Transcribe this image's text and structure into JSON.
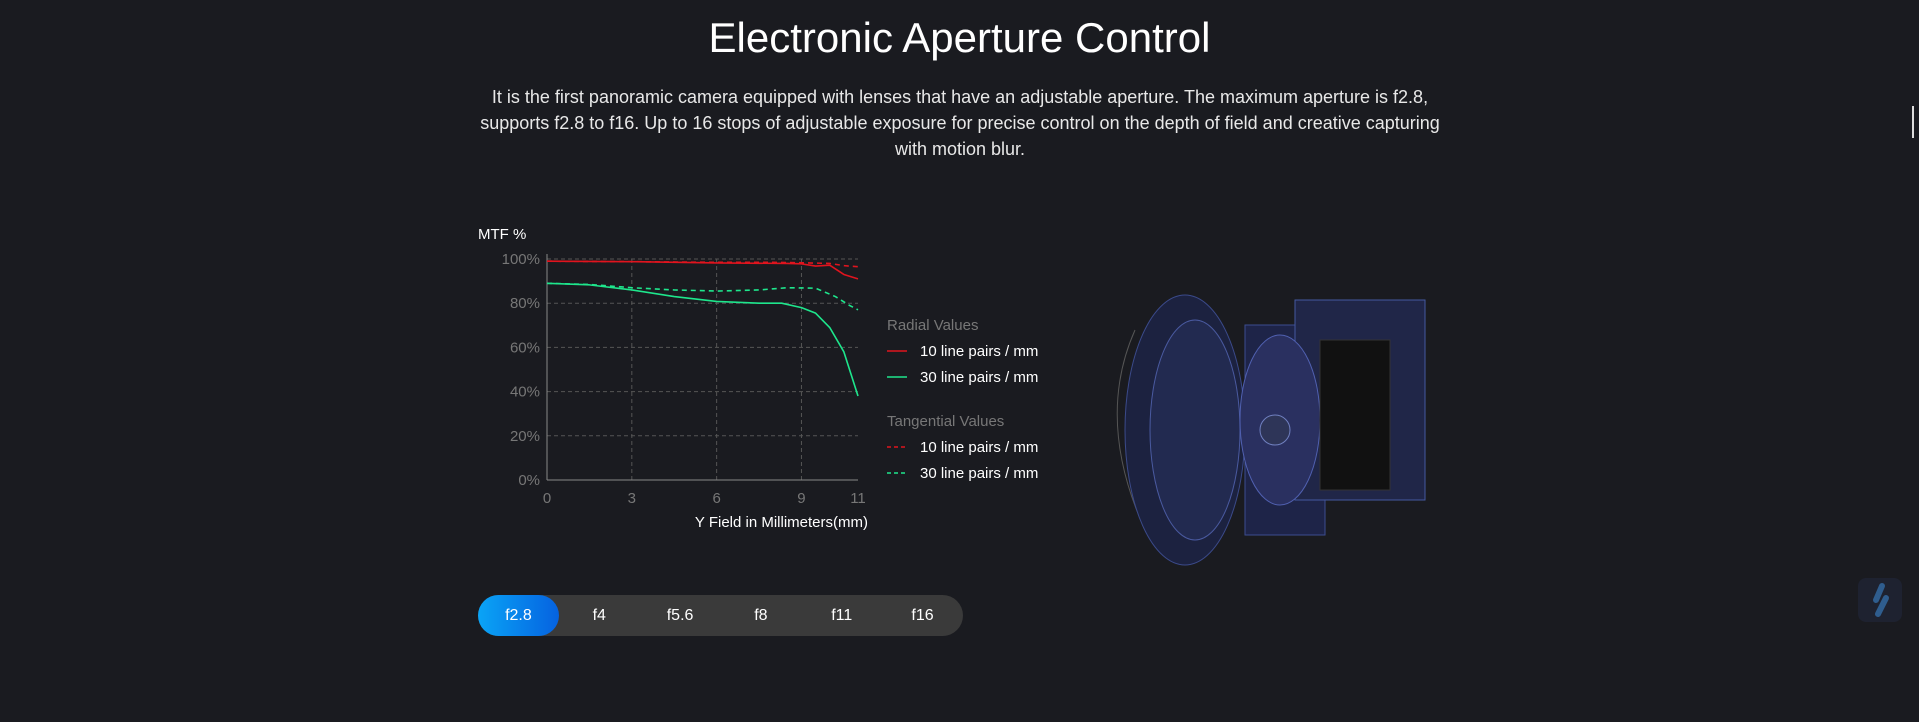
{
  "header": {
    "title": "Electronic Aperture Control",
    "description": "It is the first panoramic camera equipped with lenses that have an adjustable aperture. The maximum aperture is f2.8, supports f2.8 to f16. Up to 16 stops of adjustable exposure for precise control on the depth of field and creative capturing with motion blur."
  },
  "aperture": {
    "options": [
      "f2.8",
      "f4",
      "f5.6",
      "f8",
      "f11",
      "f16"
    ],
    "selected": "f2.8"
  },
  "colors": {
    "bg": "#1a1b20",
    "red": "#e0141e",
    "green": "#1ee68c",
    "accent": "#0a8cf0"
  },
  "chart_data": {
    "type": "line",
    "ylabel": "MTF %",
    "xlabel": "Y Field in Millimeters(mm)",
    "xlim": [
      0,
      11
    ],
    "ylim": [
      0,
      100
    ],
    "xticks": [
      "0",
      "3",
      "6",
      "9",
      "11"
    ],
    "yticks": [
      "0%",
      "20%",
      "40%",
      "60%",
      "80%",
      "100%"
    ],
    "grid": true,
    "legend_position": "right",
    "legend_groups": [
      "Radial Values",
      "Tangential Values"
    ],
    "series": [
      {
        "name": "10 line pairs / mm",
        "group": "Radial Values",
        "color": "#e0141e",
        "dash": false,
        "x": [
          0,
          3,
          6,
          8.5,
          9,
          9.5,
          10,
          10.5,
          11
        ],
        "y": [
          99,
          98.8,
          98.2,
          98,
          97.8,
          96.8,
          97.2,
          93,
          91
        ]
      },
      {
        "name": "30 line pairs / mm",
        "group": "Radial Values",
        "color": "#1ee68c",
        "dash": false,
        "x": [
          0,
          1.5,
          3,
          4.5,
          6,
          7.5,
          8.3,
          9,
          9.5,
          10,
          10.5,
          11
        ],
        "y": [
          89,
          88.3,
          86,
          83,
          80.8,
          80,
          80,
          78,
          75.5,
          69,
          58,
          38
        ]
      },
      {
        "name": "10 line pairs / mm",
        "group": "Tangential Values",
        "color": "#e0141e",
        "dash": true,
        "x": [
          0,
          3,
          6,
          8,
          9,
          10,
          10.5,
          11
        ],
        "y": [
          99,
          98.8,
          98.5,
          98.5,
          98.3,
          98,
          97,
          96.5
        ]
      },
      {
        "name": "30 line pairs / mm",
        "group": "Tangential Values",
        "color": "#1ee68c",
        "dash": true,
        "x": [
          0,
          1.5,
          3,
          4.5,
          6,
          7.5,
          8.5,
          9.5,
          10.2,
          10.7,
          11
        ],
        "y": [
          89,
          88.5,
          87,
          86,
          85.5,
          86,
          87,
          86.8,
          83,
          79,
          77
        ]
      }
    ]
  }
}
